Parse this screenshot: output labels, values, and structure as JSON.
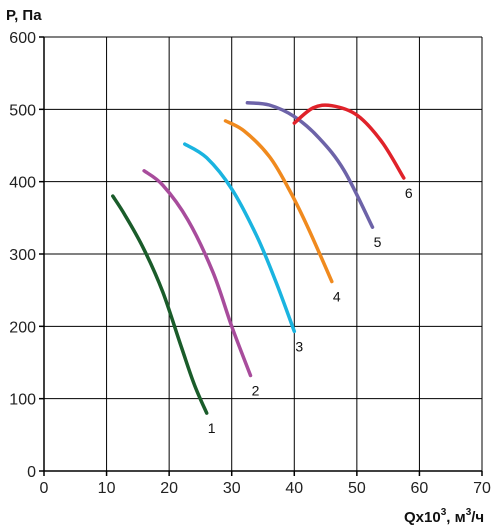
{
  "chart_data": {
    "type": "line",
    "ylabel": "P, Па",
    "xlabel_main": "Qx10",
    "xlabel_exp": "3",
    "xlabel_unit": ", м",
    "xlabel_unit_exp": "3",
    "xlabel_tail": "/ч",
    "xlim": [
      0,
      70
    ],
    "ylim": [
      0,
      600
    ],
    "x_ticks": [
      0,
      10,
      20,
      30,
      40,
      50,
      60,
      70
    ],
    "y_ticks": [
      0,
      100,
      200,
      300,
      400,
      500,
      600
    ],
    "grid": true,
    "series": [
      {
        "name": "1",
        "color": "#1a5c2a",
        "x": [
          11,
          13,
          16,
          19,
          22,
          24,
          26
        ],
        "y": [
          380,
          353,
          306,
          247,
          170,
          120,
          80
        ]
      },
      {
        "name": "2",
        "color": "#a84c9c",
        "x": [
          16,
          19,
          23,
          27,
          30,
          33
        ],
        "y": [
          415,
          395,
          347,
          275,
          200,
          132
        ]
      },
      {
        "name": "3",
        "color": "#1ab4e0",
        "x": [
          22.5,
          26,
          30,
          34,
          37,
          40
        ],
        "y": [
          452,
          433,
          390,
          325,
          263,
          193
        ]
      },
      {
        "name": "4",
        "color": "#f08a1e",
        "x": [
          29,
          32,
          36,
          39,
          42,
          46
        ],
        "y": [
          484,
          470,
          435,
          392,
          340,
          262
        ]
      },
      {
        "name": "5",
        "color": "#6d63a8",
        "x": [
          32.5,
          36,
          40,
          44,
          48,
          52.5
        ],
        "y": [
          509,
          506,
          490,
          460,
          415,
          337
        ]
      },
      {
        "name": "6",
        "color": "#e0222a",
        "x": [
          40,
          43,
          46,
          50,
          54,
          57.5
        ],
        "y": [
          481,
          502,
          505,
          492,
          455,
          405
        ]
      }
    ]
  }
}
